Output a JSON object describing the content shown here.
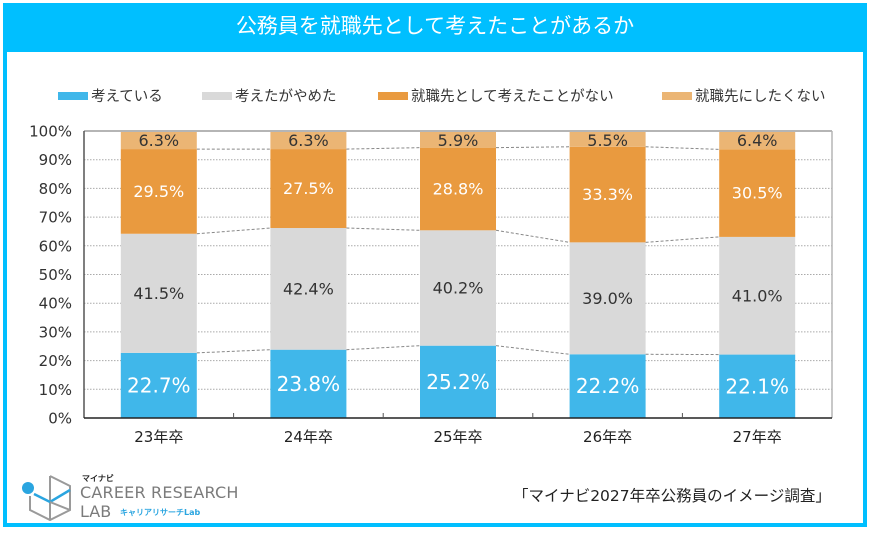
{
  "title": "公務員を就職先として考えたことがあるか",
  "source": "「マイナビ2027年卒公務員のイメージ調査」",
  "logo": {
    "brand": "マイナビ",
    "line1": "CAREER RESEARCH",
    "line2": "LAB",
    "sub": "キャリアリサーチLab"
  },
  "colors": {
    "frame": "#00bfff",
    "series": [
      "#40b7ea",
      "#d9d9d9",
      "#e99a3f",
      "#ebb574"
    ],
    "label_text": [
      "#ffffff",
      "#333333",
      "#ffffff",
      "#333333"
    ]
  },
  "chart_data": {
    "type": "bar",
    "stacked": true,
    "title": "公務員を就職先として考えたことがあるか",
    "xlabel": "",
    "ylabel": "",
    "ylim": [
      0,
      100
    ],
    "yticks": [
      "0%",
      "10%",
      "20%",
      "30%",
      "40%",
      "50%",
      "60%",
      "70%",
      "80%",
      "90%",
      "100%"
    ],
    "categories": [
      "23年卒",
      "24年卒",
      "25年卒",
      "26年卒",
      "27年卒"
    ],
    "legend_position": "top",
    "grid": true,
    "series": [
      {
        "name": "考えている",
        "values": [
          22.7,
          23.8,
          25.2,
          22.2,
          22.1
        ],
        "labels": [
          "22.7%",
          "23.8%",
          "25.2%",
          "22.2%",
          "22.1%"
        ]
      },
      {
        "name": "考えたがやめた",
        "values": [
          41.5,
          42.4,
          40.2,
          39.0,
          41.0
        ],
        "labels": [
          "41.5%",
          "42.4%",
          "40.2%",
          "39.0%",
          "41.0%"
        ]
      },
      {
        "name": "就職先として考えたことがない",
        "values": [
          29.5,
          27.5,
          28.8,
          33.3,
          30.5
        ],
        "labels": [
          "29.5%",
          "27.5%",
          "28.8%",
          "33.3%",
          "30.5%"
        ]
      },
      {
        "name": "就職先にしたくない",
        "values": [
          6.3,
          6.3,
          5.9,
          5.5,
          6.4
        ],
        "labels": [
          "6.3%",
          "6.3%",
          "5.9%",
          "5.5%",
          "6.4%"
        ]
      }
    ]
  }
}
